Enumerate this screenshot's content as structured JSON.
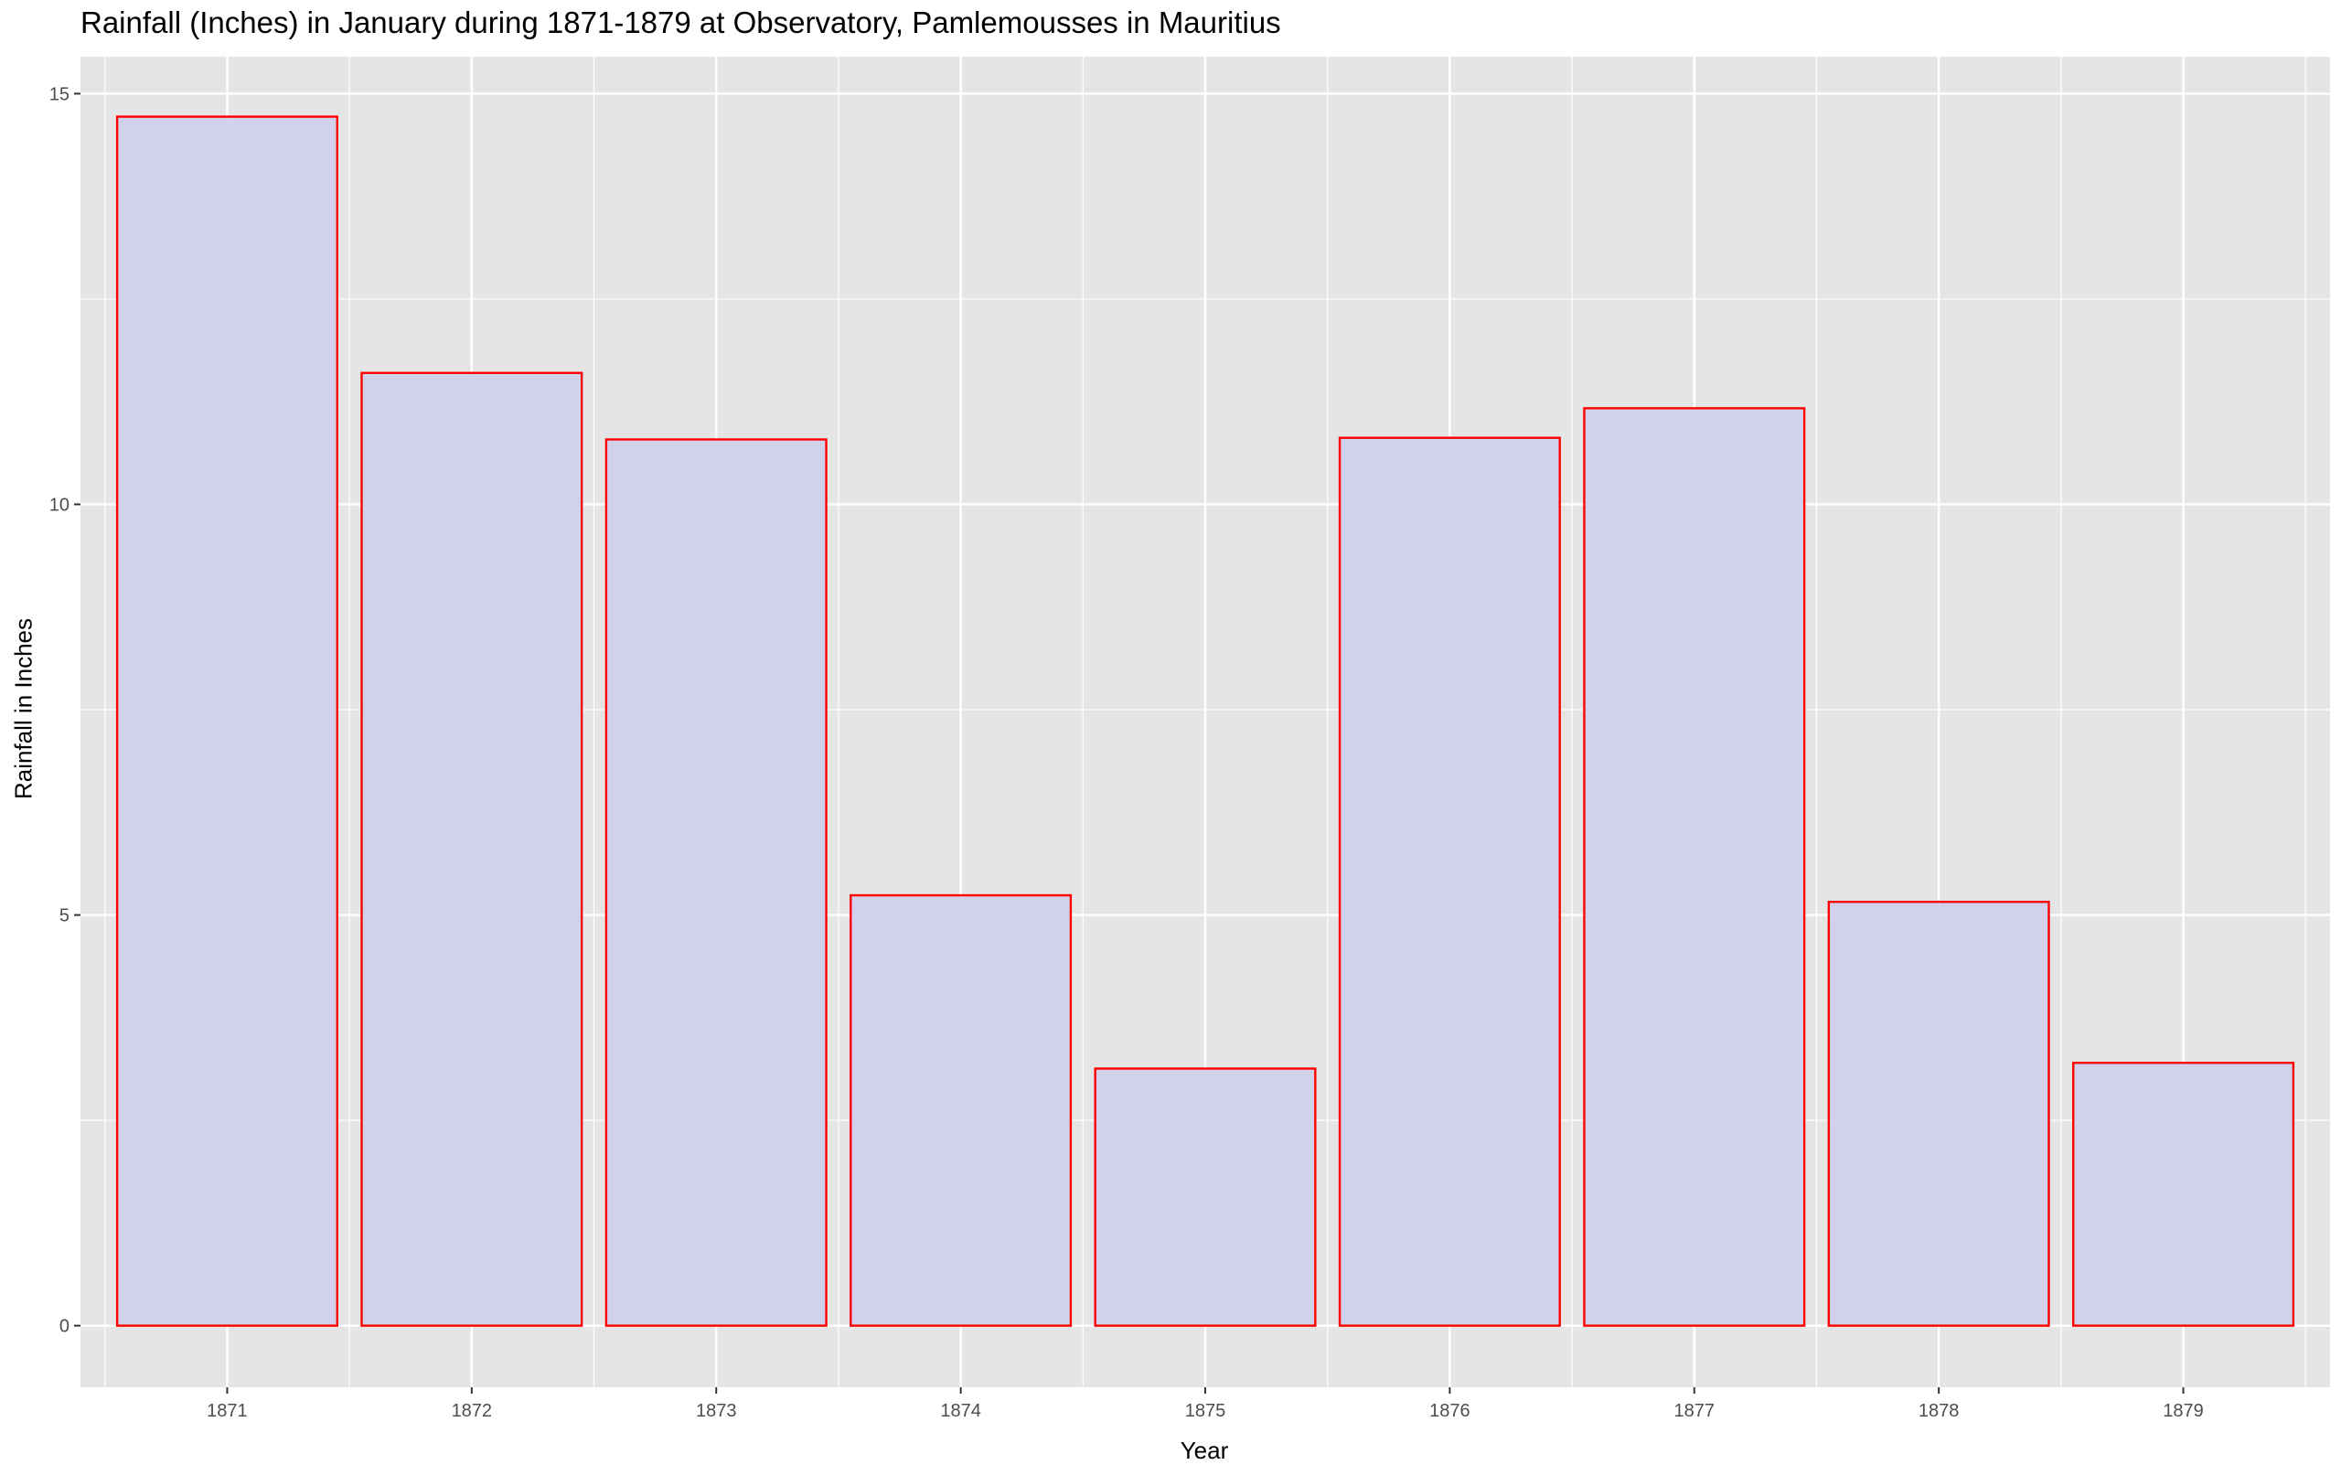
{
  "chart_data": {
    "type": "bar",
    "title": "Rainfall (Inches) in January during 1871-1879 at Observatory, Pamlemousses in Mauritius",
    "xlabel": "Year",
    "ylabel": "Rainfall in Inches",
    "categories": [
      "1871",
      "1872",
      "1873",
      "1874",
      "1875",
      "1876",
      "1877",
      "1878",
      "1879"
    ],
    "values": [
      14.72,
      11.6,
      10.79,
      5.24,
      3.13,
      10.81,
      11.17,
      5.16,
      3.2
    ],
    "ylim": [
      -0.75,
      15.45
    ],
    "yticks": [
      0,
      5,
      10,
      15
    ],
    "grid": true,
    "legend": "none",
    "colors": {
      "bar_fill": "#cfcfeb",
      "bar_outline": "#ff0000",
      "panel_background": "#e5e5e5",
      "grid_line": "#ffffff"
    }
  }
}
